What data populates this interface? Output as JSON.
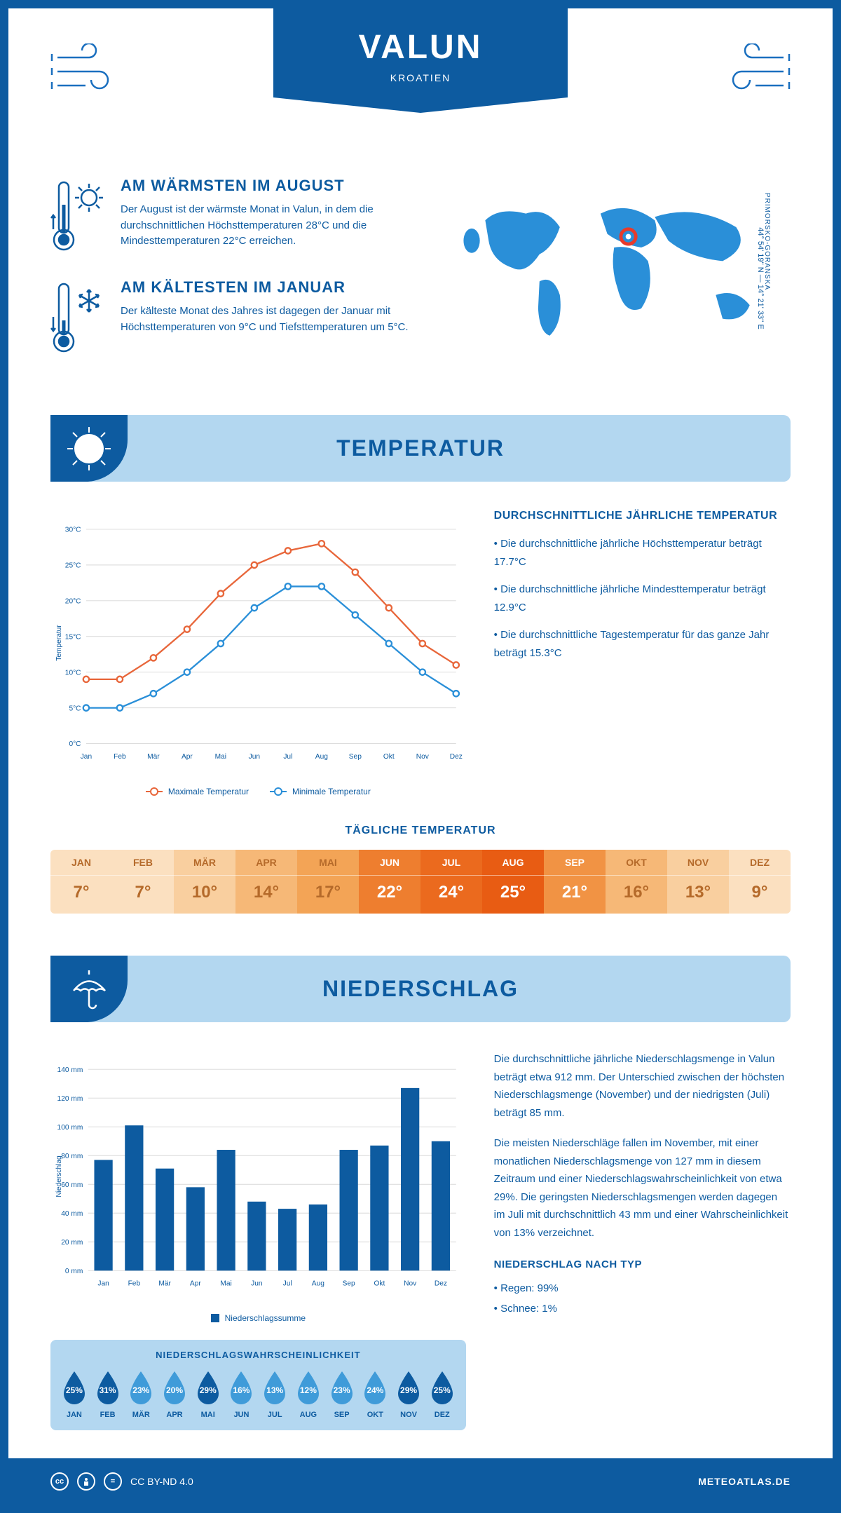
{
  "header": {
    "city": "VALUN",
    "country": "KROATIEN",
    "coords": "44° 54' 19'' N — 14° 21' 33'' E",
    "region": "PRIMORSKO-GORANSKA"
  },
  "info": {
    "warmest": {
      "title": "AM WÄRMSTEN IM AUGUST",
      "text": "Der August ist der wärmste Monat in Valun, in dem die durchschnittlichen Höchsttemperaturen 28°C und die Mindesttemperaturen 22°C erreichen."
    },
    "coldest": {
      "title": "AM KÄLTESTEN IM JANUAR",
      "text": "Der kälteste Monat des Jahres ist dagegen der Januar mit Höchsttemperaturen von 9°C und Tiefsttemperaturen um 5°C."
    }
  },
  "sections": {
    "temperature": "TEMPERATUR",
    "precipitation": "NIEDERSCHLAG"
  },
  "temp_chart": {
    "type": "line",
    "months": [
      "Jan",
      "Feb",
      "Mär",
      "Apr",
      "Mai",
      "Jun",
      "Jul",
      "Aug",
      "Sep",
      "Okt",
      "Nov",
      "Dez"
    ],
    "max_values": [
      9,
      9,
      12,
      16,
      21,
      25,
      27,
      28,
      24,
      19,
      14,
      11
    ],
    "min_values": [
      5,
      5,
      7,
      10,
      14,
      19,
      22,
      22,
      18,
      14,
      10,
      7
    ],
    "max_color": "#e8663a",
    "min_color": "#2a8fd8",
    "ylim": [
      0,
      30
    ],
    "ytick_step": 5,
    "ylabel": "Temperatur",
    "legend_max": "Maximale Temperatur",
    "legend_min": "Minimale Temperatur",
    "y_unit": "°C",
    "grid_color": "#d8d8d8"
  },
  "temp_summary": {
    "title": "DURCHSCHNITTLICHE JÄHRLICHE TEMPERATUR",
    "bullets": [
      "• Die durchschnittliche jährliche Höchsttemperatur beträgt 17.7°C",
      "• Die durchschnittliche jährliche Mindesttemperatur beträgt 12.9°C",
      "• Die durchschnittliche Tagestemperatur für das ganze Jahr beträgt 15.3°C"
    ]
  },
  "daily_temp": {
    "title": "TÄGLICHE TEMPERATUR",
    "months": [
      "JAN",
      "FEB",
      "MÄR",
      "APR",
      "MAI",
      "JUN",
      "JUL",
      "AUG",
      "SEP",
      "OKT",
      "NOV",
      "DEZ"
    ],
    "values": [
      "7°",
      "7°",
      "10°",
      "14°",
      "17°",
      "22°",
      "24°",
      "25°",
      "21°",
      "16°",
      "13°",
      "9°"
    ],
    "colors": [
      "#fbe0c0",
      "#fbe0c0",
      "#f9cf9f",
      "#f6b877",
      "#f3a456",
      "#ee7e2f",
      "#eb6a1e",
      "#e85c13",
      "#f19344",
      "#f6b877",
      "#f9cf9f",
      "#fbe0c0"
    ],
    "text_dark": "#b56a2a",
    "text_light": "#ffffff",
    "dark_threshold": 20
  },
  "precip_chart": {
    "type": "bar",
    "months": [
      "Jan",
      "Feb",
      "Mär",
      "Apr",
      "Mai",
      "Jun",
      "Jul",
      "Aug",
      "Sep",
      "Okt",
      "Nov",
      "Dez"
    ],
    "values": [
      77,
      101,
      71,
      58,
      84,
      48,
      43,
      46,
      84,
      87,
      127,
      90
    ],
    "bar_color": "#0d5ba0",
    "ylim": [
      0,
      140
    ],
    "ytick_step": 20,
    "ylabel": "Niederschlag",
    "legend": "Niederschlagssumme",
    "y_unit": " mm",
    "grid_color": "#d8d8d8"
  },
  "precip_text": {
    "p1": "Die durchschnittliche jährliche Niederschlagsmenge in Valun beträgt etwa 912 mm. Der Unterschied zwischen der höchsten Niederschlagsmenge (November) und der niedrigsten (Juli) beträgt 85 mm.",
    "p2": "Die meisten Niederschläge fallen im November, mit einer monatlichen Niederschlagsmenge von 127 mm in diesem Zeitraum und einer Niederschlagswahrscheinlichkeit von etwa 29%. Die geringsten Niederschlagsmengen werden dagegen im Juli mit durchschnittlich 43 mm und einer Wahrscheinlichkeit von 13% verzeichnet.",
    "type_title": "NIEDERSCHLAG NACH TYP",
    "type_bullets": [
      "• Regen: 99%",
      "• Schnee: 1%"
    ]
  },
  "precip_chance": {
    "title": "NIEDERSCHLAGSWAHRSCHEINLICHKEIT",
    "months": [
      "JAN",
      "FEB",
      "MÄR",
      "APR",
      "MAI",
      "JUN",
      "JUL",
      "AUG",
      "SEP",
      "OKT",
      "NOV",
      "DEZ"
    ],
    "values": [
      "25%",
      "31%",
      "23%",
      "20%",
      "29%",
      "16%",
      "13%",
      "12%",
      "23%",
      "24%",
      "29%",
      "25%"
    ],
    "nums": [
      25,
      31,
      23,
      20,
      29,
      16,
      13,
      12,
      23,
      24,
      29,
      25
    ],
    "color_dark": "#0d5ba0",
    "color_light": "#3f9bd9",
    "threshold": 25
  },
  "footer": {
    "license": "CC BY-ND 4.0",
    "site": "METEOATLAS.DE"
  },
  "colors": {
    "primary": "#0d5ba0",
    "banner_bg": "#b3d7f0"
  }
}
